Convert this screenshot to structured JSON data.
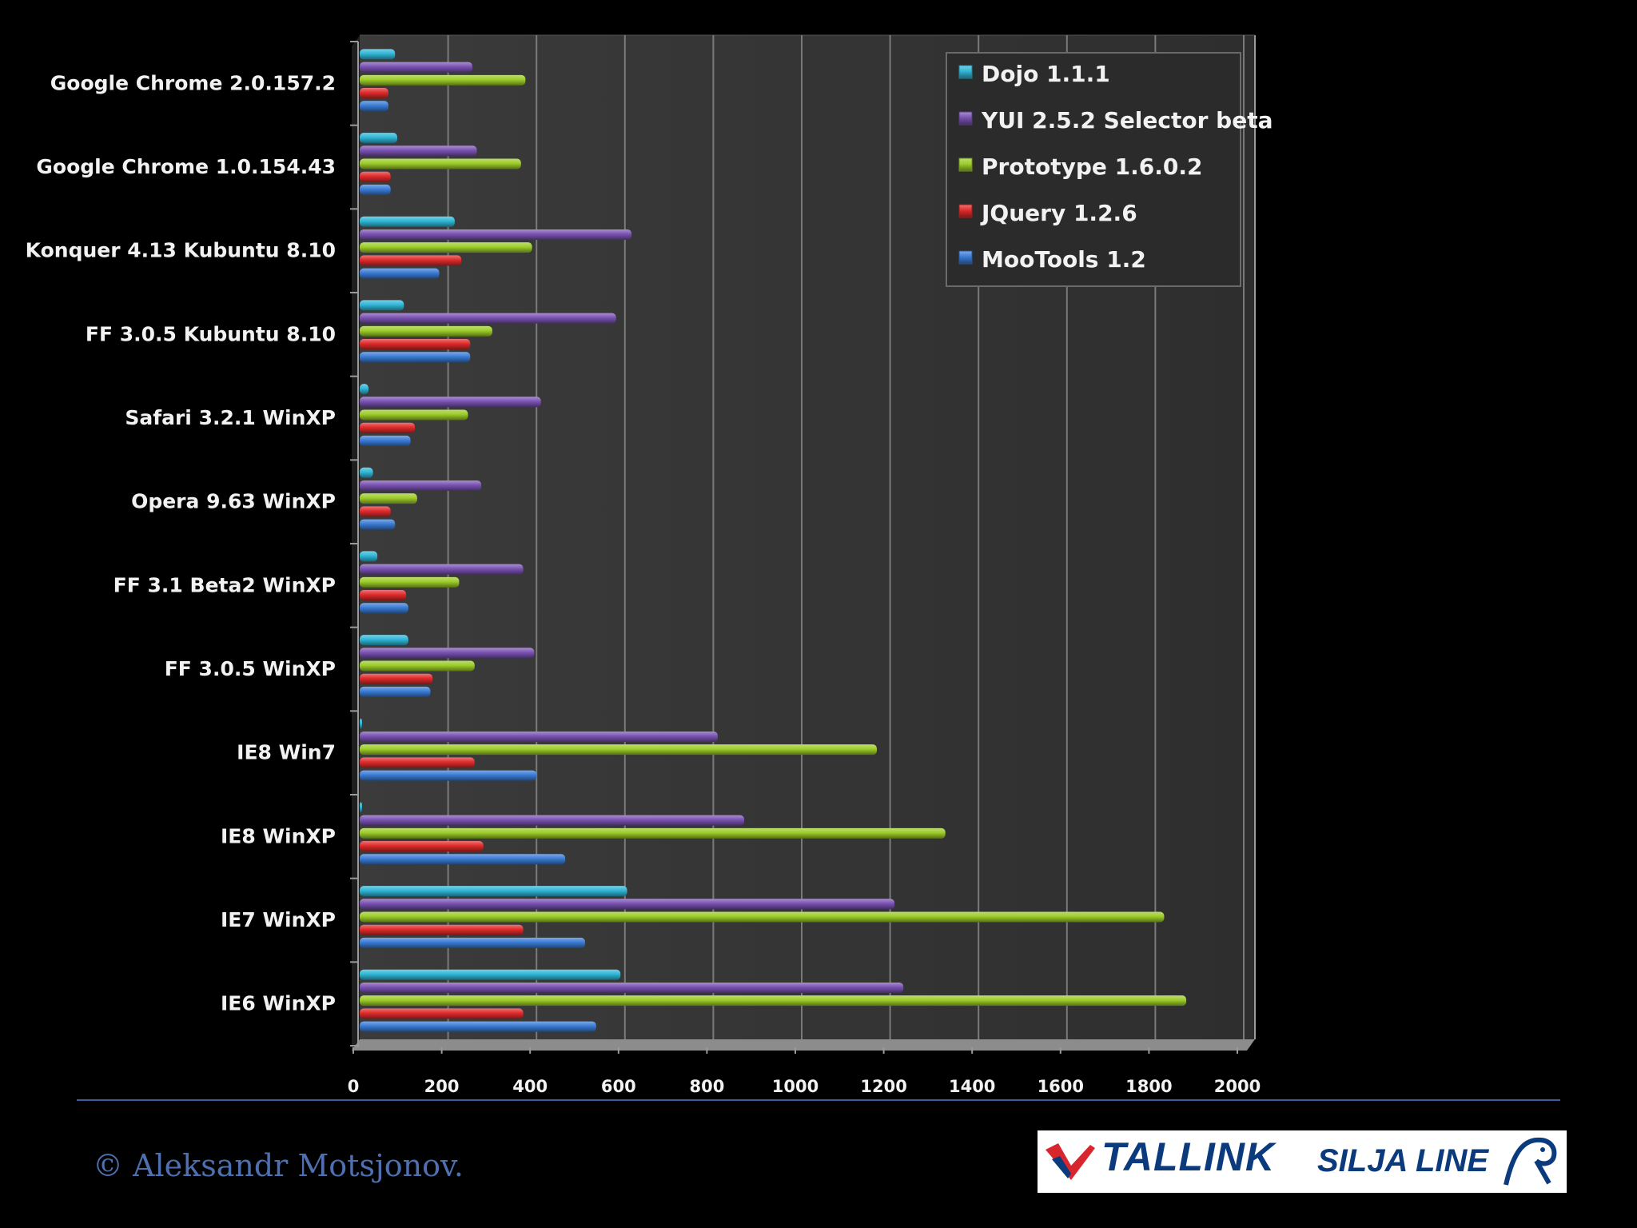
{
  "chart_data": {
    "type": "bar",
    "orientation": "horizontal",
    "title": "",
    "xlabel": "",
    "ylabel": "",
    "xlim": [
      0,
      2000
    ],
    "x_ticks": [
      "0",
      "200",
      "400",
      "600",
      "800",
      "1000",
      "1200",
      "1400",
      "1600",
      "1800",
      "2000"
    ],
    "grid": true,
    "legend_position": "top-right",
    "categories": [
      "Google Chrome 2.0.157.2",
      "Google Chrome 1.0.154.43",
      "Konquer 4.13 Kubuntu  8.10",
      "FF 3.0.5 Kubuntu  8.10",
      "Safari 3.2.1 WinXP",
      "Opera 9.63 WinXP",
      "FF 3.1 Beta2 WinXP",
      "FF 3.0.5 WinXP",
      "IE8 Win7",
      "IE8 WinXP",
      "IE7 WinXP",
      "IE6 WinXP"
    ],
    "series": [
      {
        "name": "Dojo 1.1.1",
        "color": "#2fb6d6",
        "values": [
          80,
          85,
          215,
          100,
          20,
          30,
          40,
          110,
          5,
          5,
          605,
          590
        ]
      },
      {
        "name": "YUI 2.5.2 Selector beta",
        "color": "#7a52b3",
        "values": [
          255,
          265,
          615,
          580,
          410,
          275,
          370,
          395,
          810,
          870,
          1210,
          1230
        ]
      },
      {
        "name": "Prototype 1.6.0.2",
        "color": "#9ccc28",
        "values": [
          375,
          365,
          390,
          300,
          245,
          130,
          225,
          260,
          1170,
          1325,
          1820,
          1870
        ]
      },
      {
        "name": "JQuery 1.2.6",
        "color": "#e02a2a",
        "values": [
          65,
          70,
          230,
          250,
          125,
          70,
          105,
          165,
          260,
          280,
          370,
          370
        ]
      },
      {
        "name": "MooTools 1.2",
        "color": "#3a7bd5",
        "values": [
          65,
          70,
          180,
          250,
          115,
          80,
          110,
          160,
          400,
          465,
          510,
          535
        ]
      }
    ]
  },
  "footer": {
    "copyright": "© Aleksandr Motsjonov.",
    "logo_text_1": "TALLINK",
    "logo_text_2": "SILJA LINE"
  }
}
